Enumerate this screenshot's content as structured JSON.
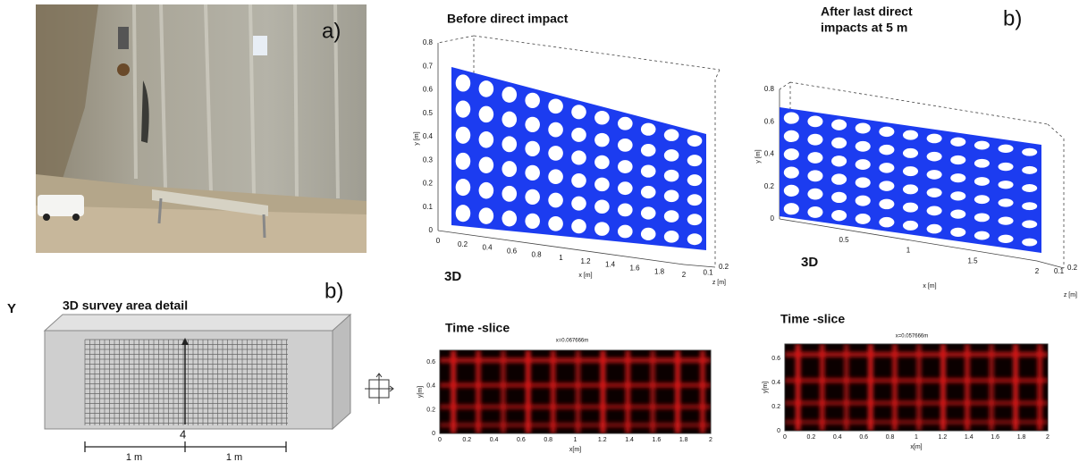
{
  "figure_labels": [
    "a)",
    "b)",
    "b)"
  ],
  "plots_3d": [
    {
      "title": [
        "Before direct impact"
      ],
      "view": "3D",
      "x_label": "x [m]",
      "y_label": "y [m]",
      "z_label": "z [m]",
      "y_ticks": [
        "0",
        "0.1",
        "0.2",
        "0.3",
        "0.4",
        "0.5",
        "0.6",
        "0.7",
        "0.8"
      ],
      "x_ticks": [
        "0",
        "0.2",
        "0.4",
        "0.6",
        "0.8",
        "1",
        "1.2",
        "1.4",
        "1.6",
        "1.8",
        "2"
      ],
      "z_ticks": [
        "0.1",
        "0.2"
      ]
    },
    {
      "title": [
        "After last direct",
        "impacts at 5 m"
      ],
      "view": "3D",
      "x_label": "x [m]",
      "y_label": "y [m]",
      "z_label": "z [m]",
      "y_ticks": [
        "0",
        "0.2",
        "0.4",
        "0.6",
        "0.8"
      ],
      "x_ticks": [
        "0.5",
        "1",
        "1.5",
        "2"
      ],
      "z_ticks": [
        "0.1",
        "0.2"
      ]
    }
  ],
  "survey": {
    "axis": "Y",
    "title": "3D survey area detail",
    "marker": "4",
    "scale": [
      "1 m",
      "1 m"
    ]
  },
  "time_slices": [
    {
      "title": "Time -slice",
      "position": "x=0.067666m",
      "x_label": "x[m]",
      "y_label": "y[m]",
      "y_ticks": [
        "0",
        "0.2",
        "0.4",
        "0.6"
      ],
      "x_ticks": [
        "0",
        "0.2",
        "0.4",
        "0.6",
        "0.8",
        "1",
        "1.2",
        "1.4",
        "1.6",
        "1.8",
        "2"
      ]
    },
    {
      "title": "Time -slice",
      "position": "x=0.057666m",
      "x_label": "x[m]",
      "y_label": "y[m]",
      "y_ticks": [
        "0",
        "0.2",
        "0.4",
        "0.6"
      ],
      "x_ticks": [
        "0",
        "0.2",
        "0.4",
        "0.6",
        "0.8",
        "1",
        "1.2",
        "1.4",
        "1.6",
        "1.8",
        "2"
      ]
    }
  ]
}
